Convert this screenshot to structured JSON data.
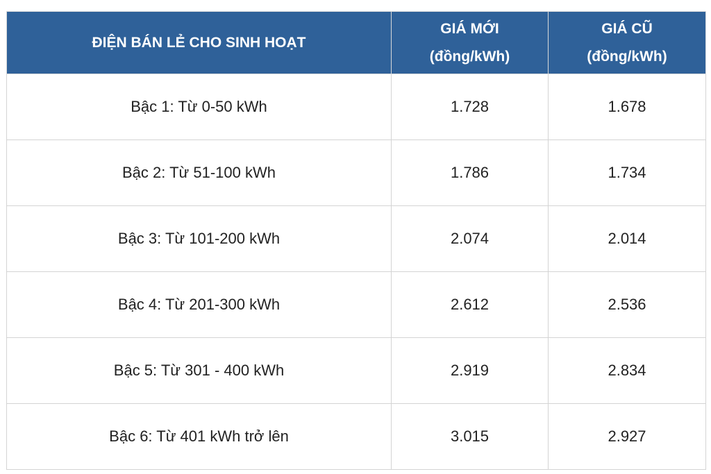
{
  "table": {
    "headers": [
      {
        "line1": "ĐIỆN BÁN LẺ CHO SINH HOẠT",
        "line2": ""
      },
      {
        "line1": "GIÁ MỚI",
        "line2": "(đồng/kWh)"
      },
      {
        "line1": "GIÁ CŨ",
        "line2": "(đồng/kWh)"
      }
    ],
    "rows": [
      {
        "tier": "Bậc 1: Từ 0-50 kWh",
        "new_price": "1.728",
        "old_price": "1.678"
      },
      {
        "tier": "Bậc 2: Từ 51-100 kWh",
        "new_price": "1.786",
        "old_price": "1.734"
      },
      {
        "tier": "Bậc 3: Từ 101-200 kWh",
        "new_price": "2.074",
        "old_price": "2.014"
      },
      {
        "tier": "Bậc 4: Từ 201-300 kWh",
        "new_price": "2.612",
        "old_price": "2.536"
      },
      {
        "tier": "Bậc 5: Từ 301 - 400 kWh",
        "new_price": "2.919",
        "old_price": "2.834"
      },
      {
        "tier": "Bậc 6: Từ 401 kWh trở lên",
        "new_price": "3.015",
        "old_price": "2.927"
      }
    ],
    "colors": {
      "header_bg": "#2f6199",
      "header_text": "#ffffff",
      "border": "#d4d4d4"
    }
  }
}
